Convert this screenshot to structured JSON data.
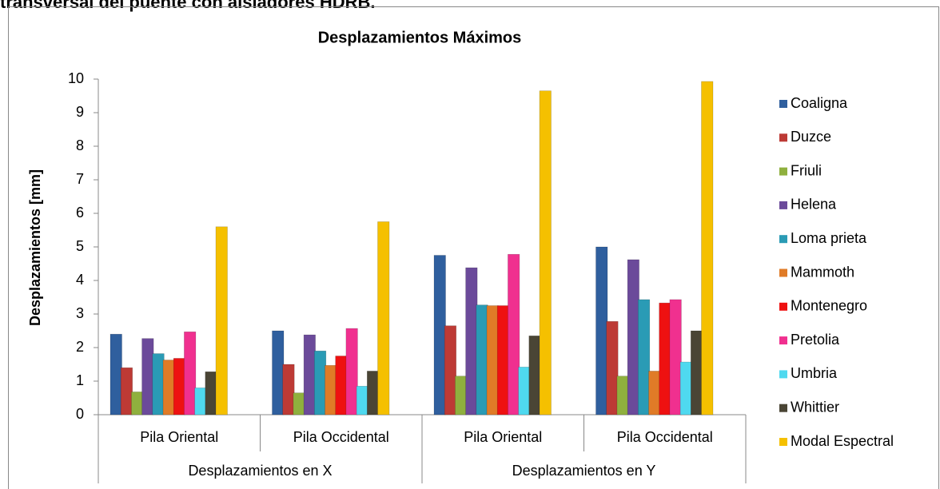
{
  "page_title": "transversal del puente con aisladores HDRB.",
  "chart_data": {
    "type": "bar",
    "title": "Desplazamientos Máximos",
    "y_label": "Desplazamientos [mm]",
    "categories": [
      "Pila Oriental",
      "Pila Occidental",
      "Pila Oriental",
      "Pila Occidental"
    ],
    "group_labels": [
      "Desplazamientos en X",
      "Desplazamientos en Y"
    ],
    "ylim": [
      0,
      10
    ],
    "yticks": [
      0,
      1,
      2,
      3,
      4,
      5,
      6,
      7,
      8,
      9,
      10
    ],
    "grid": false,
    "legend": "right",
    "series": [
      {
        "name": "Coaligna",
        "color": "#2f5f9e",
        "values": [
          2.4,
          2.5,
          4.75,
          5.0
        ]
      },
      {
        "name": "Duzce",
        "color": "#bd3a35",
        "values": [
          1.4,
          1.5,
          2.65,
          2.78
        ]
      },
      {
        "name": "Friuli",
        "color": "#8fb03e",
        "values": [
          0.68,
          0.65,
          1.15,
          1.15
        ]
      },
      {
        "name": "Helena",
        "color": "#6b4a9a",
        "values": [
          2.27,
          2.38,
          4.38,
          4.62
        ]
      },
      {
        "name": "Loma prieta",
        "color": "#2a9bb5",
        "values": [
          1.82,
          1.9,
          3.27,
          3.43
        ]
      },
      {
        "name": "Mammoth",
        "color": "#e07b27",
        "values": [
          1.63,
          1.47,
          3.25,
          1.3
        ]
      },
      {
        "name": "Montenegro",
        "color": "#ee1111",
        "values": [
          1.68,
          1.75,
          3.25,
          3.33
        ]
      },
      {
        "name": "Pretolia",
        "color": "#f0308f",
        "values": [
          2.47,
          2.57,
          4.78,
          3.43
        ]
      },
      {
        "name": "Umbria",
        "color": "#4fd9ef",
        "values": [
          0.8,
          0.85,
          1.42,
          1.57
        ]
      },
      {
        "name": "Whittier",
        "color": "#4a4535",
        "values": [
          1.28,
          1.3,
          2.35,
          2.5
        ]
      },
      {
        "name": "Modal Espectral",
        "color": "#f5c000",
        "values": [
          5.6,
          5.75,
          9.65,
          9.93
        ]
      }
    ]
  }
}
